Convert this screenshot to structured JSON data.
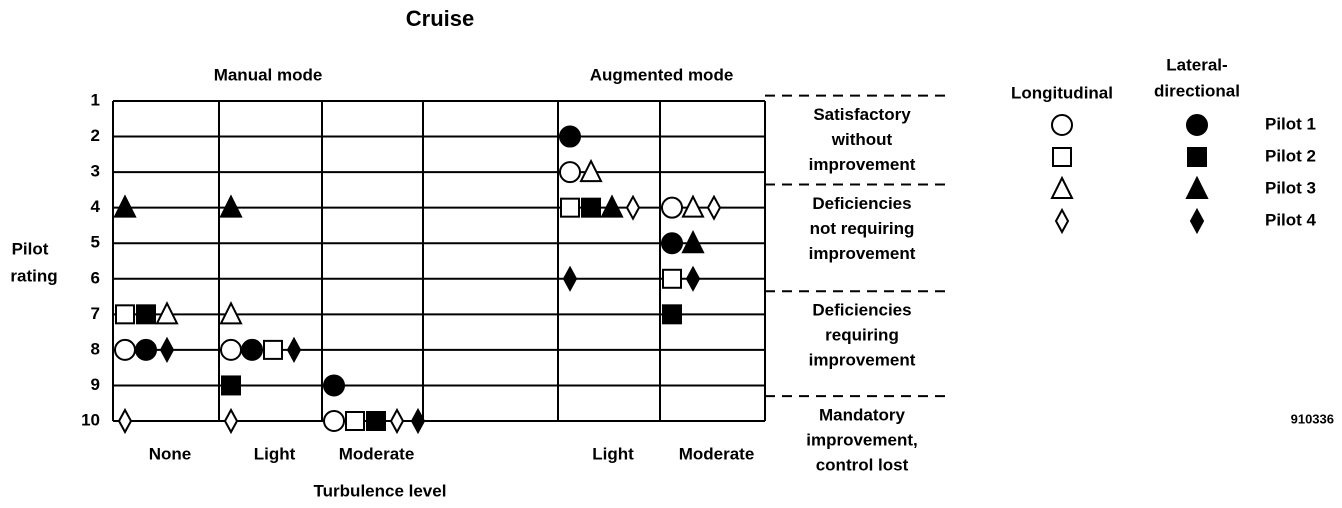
{
  "chart_data": {
    "type": "scatter",
    "title": "Cruise",
    "y_label": [
      "Pilot",
      "rating"
    ],
    "x_label": "Turbulence level",
    "figure_number": "910336",
    "groups": [
      {
        "label": "Manual mode",
        "columns": [
          0,
          2
        ]
      },
      {
        "label": "Augmented mode",
        "columns": [
          4,
          5
        ]
      }
    ],
    "categories": [
      "None",
      "Light",
      "Moderate",
      null,
      "Light",
      "Moderate"
    ],
    "ylim": [
      1,
      10
    ],
    "yticks": [
      1,
      2,
      3,
      4,
      5,
      6,
      7,
      8,
      9,
      10
    ],
    "grid": true,
    "legend_columns": [
      "Longitudinal",
      [
        "Lateral-",
        "directional"
      ]
    ],
    "legend_rows": [
      "Pilot 1",
      "Pilot 2",
      "Pilot 3",
      "Pilot 4"
    ],
    "series": [
      {
        "pilot": 0,
        "axis": 0,
        "marker": "circle",
        "filled": false,
        "color": "#000000",
        "values": [
          8,
          8,
          10,
          null,
          3,
          4
        ]
      },
      {
        "pilot": 0,
        "axis": 1,
        "marker": "circle",
        "filled": true,
        "color": "#000000",
        "values": [
          8,
          8,
          9,
          null,
          2,
          5
        ]
      },
      {
        "pilot": 1,
        "axis": 0,
        "marker": "square",
        "filled": false,
        "color": "#000000",
        "values": [
          7,
          8,
          10,
          null,
          4,
          6
        ]
      },
      {
        "pilot": 1,
        "axis": 1,
        "marker": "square",
        "filled": true,
        "color": "#000000",
        "values": [
          7,
          9,
          10,
          null,
          4,
          7
        ]
      },
      {
        "pilot": 2,
        "axis": 0,
        "marker": "triangle",
        "filled": false,
        "color": "#000000",
        "values": [
          7,
          7,
          null,
          null,
          3,
          4
        ]
      },
      {
        "pilot": 2,
        "axis": 1,
        "marker": "triangle",
        "filled": true,
        "color": "#000000",
        "values": [
          4,
          4,
          null,
          null,
          4,
          5
        ]
      },
      {
        "pilot": 3,
        "axis": 0,
        "marker": "diamond",
        "filled": false,
        "color": "#000000",
        "values": [
          10,
          10,
          10,
          null,
          4,
          4
        ]
      },
      {
        "pilot": 3,
        "axis": 1,
        "marker": "diamond",
        "filled": true,
        "color": "#000000",
        "values": [
          8,
          8,
          10,
          null,
          6,
          6
        ]
      }
    ],
    "regions": [
      {
        "from": 0.85,
        "lines": [
          "Satisfactory",
          "without",
          "improvement"
        ]
      },
      {
        "from": 3.35,
        "lines": [
          "Deficiencies",
          "not requiring",
          "improvement"
        ]
      },
      {
        "from": 6.35,
        "lines": [
          "Deficiencies",
          "requiring",
          "improvement"
        ]
      },
      {
        "from": 9.3,
        "lines": [
          "Mandatory",
          "improvement,",
          "control lost"
        ]
      }
    ]
  }
}
